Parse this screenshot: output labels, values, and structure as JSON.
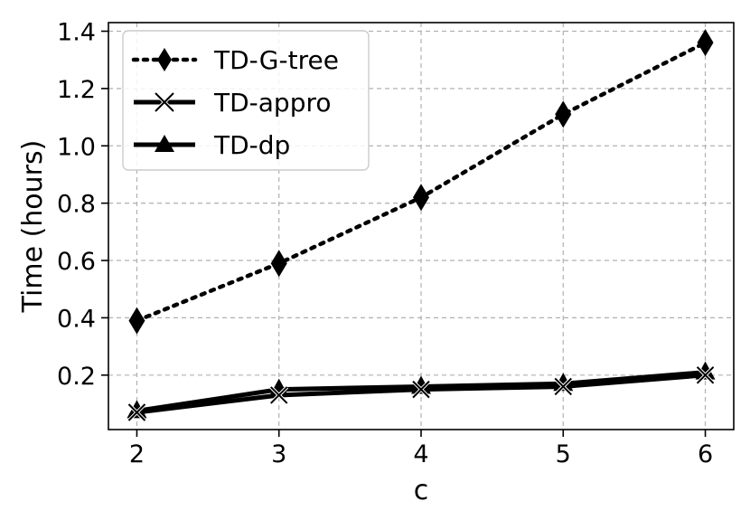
{
  "chart_data": {
    "type": "line",
    "title": "",
    "xlabel": "c",
    "ylabel": "Time (hours)",
    "x": [
      2,
      3,
      4,
      5,
      6
    ],
    "xlim": [
      1.8,
      6.2
    ],
    "ylim": [
      0.01,
      1.43
    ],
    "xticks": [
      "2",
      "3",
      "4",
      "5",
      "6"
    ],
    "yticks": [
      "0.2",
      "0.4",
      "0.6",
      "0.8",
      "1.0",
      "1.2",
      "1.4"
    ],
    "grid": true,
    "legend_position": "top-left",
    "series": [
      {
        "name": "TD-G-tree",
        "values": [
          0.39,
          0.59,
          0.82,
          1.11,
          1.36
        ],
        "marker": "diamond",
        "line_style": "dotted",
        "color": "#000000"
      },
      {
        "name": "TD-appro",
        "values": [
          0.07,
          0.13,
          0.15,
          0.16,
          0.2
        ],
        "marker": "x",
        "line_style": "solid",
        "color": "#000000"
      },
      {
        "name": "TD-dp",
        "values": [
          0.075,
          0.15,
          0.16,
          0.17,
          0.21
        ],
        "marker": "triangle",
        "line_style": "solid",
        "color": "#000000"
      }
    ]
  }
}
